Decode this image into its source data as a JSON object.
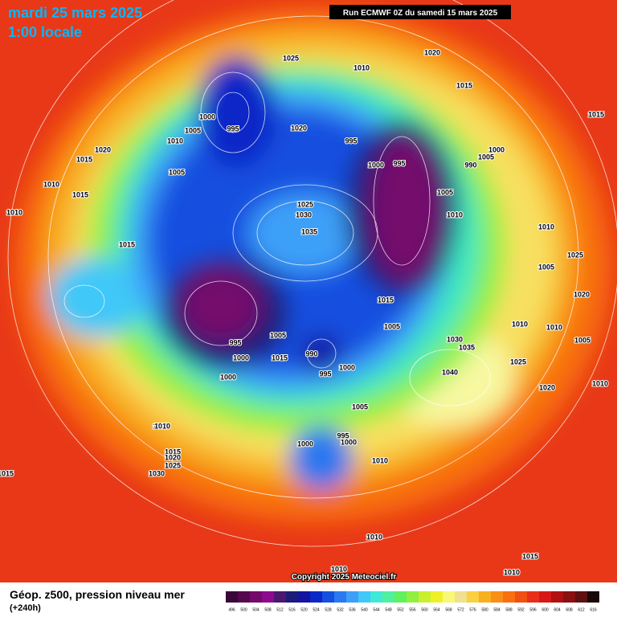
{
  "header": {
    "date": "mardi 25 mars 2025",
    "time": "1:00 locale",
    "run": "Run ECMWF 0Z du samedi 15 mars 2025"
  },
  "footer": {
    "copyright": "Copyright 2025 Meteociel.fr",
    "product": "Géop. z500, pression niveau mer",
    "lead": "(+240h)"
  },
  "legend": [
    {
      "label": 496,
      "color": "#3a0838"
    },
    {
      "label": 500,
      "color": "#56084f"
    },
    {
      "label": 504,
      "color": "#740a6c"
    },
    {
      "label": 508,
      "color": "#8c0a8c"
    },
    {
      "label": 512,
      "color": "#4a1870"
    },
    {
      "label": 516,
      "color": "#1c1c78"
    },
    {
      "label": 520,
      "color": "#1414a0"
    },
    {
      "label": 524,
      "color": "#0a28c8"
    },
    {
      "label": 528,
      "color": "#1450e0"
    },
    {
      "label": 532,
      "color": "#2c78f0"
    },
    {
      "label": 536,
      "color": "#3ca0f8"
    },
    {
      "label": 540,
      "color": "#40c8f8"
    },
    {
      "label": 544,
      "color": "#40e8d8"
    },
    {
      "label": 548,
      "color": "#50f0a0"
    },
    {
      "label": 552,
      "color": "#60f060"
    },
    {
      "label": 556,
      "color": "#90f040"
    },
    {
      "label": 560,
      "color": "#c8f030"
    },
    {
      "label": 564,
      "color": "#f0f028"
    },
    {
      "label": 568,
      "color": "#f8f878"
    },
    {
      "label": 572,
      "color": "#f0e090"
    },
    {
      "label": 576,
      "color": "#f8d040"
    },
    {
      "label": 580,
      "color": "#f8b020"
    },
    {
      "label": 584,
      "color": "#f89018"
    },
    {
      "label": 588,
      "color": "#f87010"
    },
    {
      "label": 592,
      "color": "#f05010"
    },
    {
      "label": 596,
      "color": "#e83018"
    },
    {
      "label": 600,
      "color": "#d81818"
    },
    {
      "label": 604,
      "color": "#b01010"
    },
    {
      "label": 608,
      "color": "#881010"
    },
    {
      "label": 612,
      "color": "#601010"
    },
    {
      "label": 616,
      "color": "#180808"
    }
  ],
  "isobars": [
    1025,
    1010,
    1020,
    1015,
    1015,
    1000,
    995,
    1005,
    1010,
    1020,
    1015,
    1010,
    1010,
    1015,
    1005,
    1020,
    1025,
    1030,
    1035,
    995,
    1000,
    995,
    1005,
    1010,
    1000,
    990,
    1005,
    1010,
    1005,
    1005,
    1025,
    1020,
    1015,
    1010,
    1010,
    1005,
    1000,
    1000,
    995,
    1005,
    1015,
    990,
    995,
    1000,
    1030,
    1035,
    1040,
    1025,
    1020,
    1010,
    1005,
    1015,
    1020,
    1025,
    1030,
    1010,
    1005,
    1000,
    995,
    1000,
    1010,
    1010,
    1015,
    1010,
    1010,
    1015,
    1015
  ]
}
